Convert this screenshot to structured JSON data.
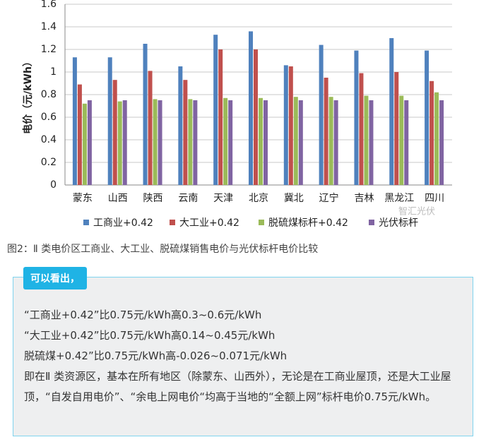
{
  "chart_data": {
    "type": "bar",
    "ylabel": "电价（元/kWh）",
    "categories": [
      "蒙东",
      "山西",
      "陕西",
      "云南",
      "天津",
      "北京",
      "冀北",
      "辽宁",
      "吉林",
      "黑龙江",
      "四川"
    ],
    "series": [
      {
        "name": "工商业+0.42",
        "color": "#4f81bd",
        "values": [
          1.13,
          1.13,
          1.25,
          1.05,
          1.33,
          1.36,
          1.06,
          1.24,
          1.19,
          1.3,
          1.19
        ]
      },
      {
        "name": "大工业+0.42",
        "color": "#c0504d",
        "values": [
          0.89,
          0.93,
          1.01,
          0.93,
          1.2,
          1.2,
          1.05,
          0.95,
          0.99,
          1.0,
          0.92
        ]
      },
      {
        "name": "脱硫煤标杆+0.42",
        "color": "#9bbb59",
        "values": [
          0.72,
          0.74,
          0.76,
          0.76,
          0.77,
          0.77,
          0.78,
          0.78,
          0.79,
          0.79,
          0.82
        ]
      },
      {
        "name": "光伏标杆",
        "color": "#8064a2",
        "values": [
          0.75,
          0.75,
          0.75,
          0.75,
          0.75,
          0.75,
          0.75,
          0.75,
          0.75,
          0.75,
          0.75
        ]
      }
    ],
    "ylim": [
      0,
      1.6
    ],
    "yticks": [
      0,
      0.2,
      0.4,
      0.6,
      0.8,
      1,
      1.2,
      1.4,
      1.6
    ],
    "grid": true,
    "watermark": "智汇光伏"
  },
  "caption": "图2：Ⅱ 类电价区工商业、大工业、脱硫煤销售电价与光伏标杆电价比较",
  "box": {
    "heading": "可以看出，",
    "lines": [
      "“工商业+0.42”比0.75元/kWh高0.3~0.6元/kWh",
      "“大工业+0.42”比0.75元/kWh高0.14~0.45元/kWh",
      "脱硫煤+0.42”比0.75元/kWh高-0.026~0.071元/kWh",
      "即在Ⅱ 类资源区，基本在所有地区（除蒙东、山西外），无论是在工商业屋顶，还是大工业屋顶，“自发自用电价”、“余电上网电价“均高于当地的“全额上网”标杆电价0.75元/kWh。"
    ]
  }
}
